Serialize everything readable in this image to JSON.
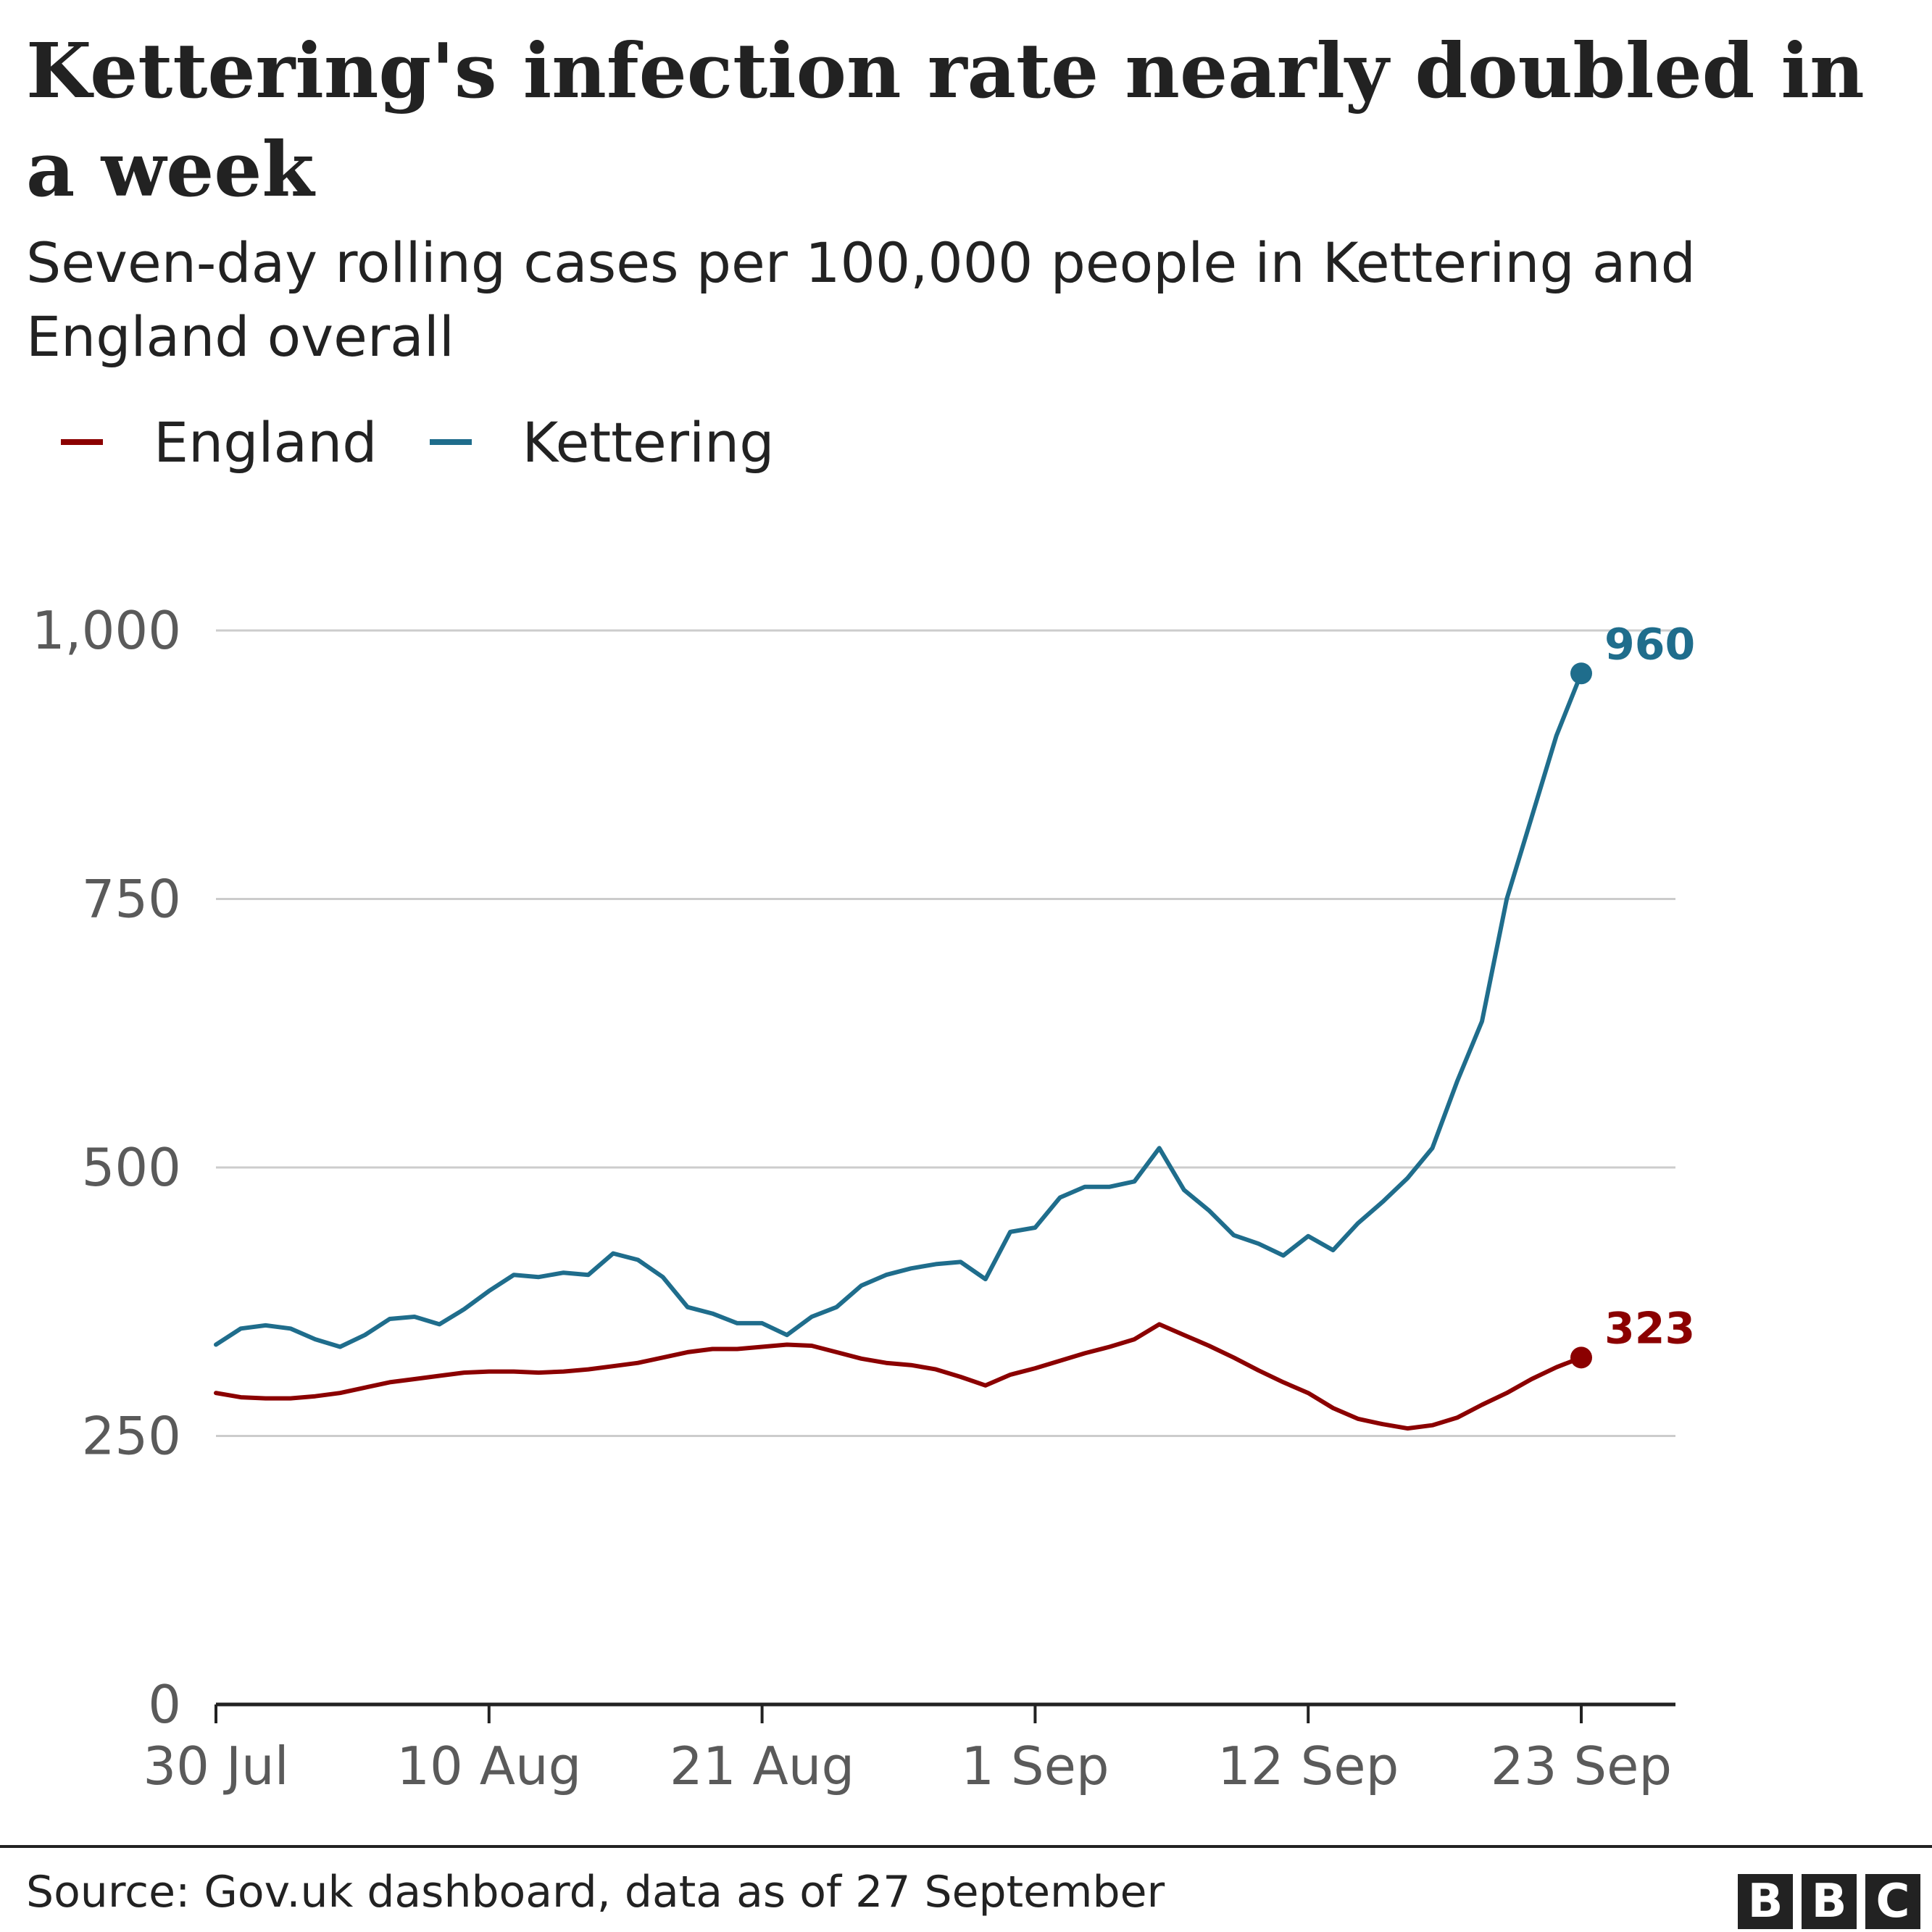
{
  "chart_data": {
    "type": "line",
    "title": "Kettering's infection rate nearly doubled in a week",
    "subtitle": "Seven-day rolling cases per 100,000 people in Kettering and England overall",
    "xlabel": "",
    "ylabel": "",
    "ylim": [
      0,
      1000
    ],
    "y_ticks": [
      {
        "value": 0,
        "label": "0"
      },
      {
        "value": 250,
        "label": "250"
      },
      {
        "value": 500,
        "label": "500"
      },
      {
        "value": 750,
        "label": "750"
      },
      {
        "value": 1000,
        "label": "1,000"
      }
    ],
    "x_start": "30 Jul",
    "x_ticks": [
      {
        "label": "30 Jul",
        "day": 0
      },
      {
        "label": "10 Aug",
        "day": 11
      },
      {
        "label": "21 Aug",
        "day": 22
      },
      {
        "label": "1 Sep",
        "day": 33
      },
      {
        "label": "12 Sep",
        "day": 44
      },
      {
        "label": "23 Sep",
        "day": 55
      }
    ],
    "grid": true,
    "legend_position": "top-left",
    "series": [
      {
        "name": "England",
        "color": "#8b0000",
        "end_label": "323",
        "values": [
          290,
          286,
          285,
          285,
          287,
          290,
          295,
          300,
          303,
          306,
          309,
          310,
          310,
          309,
          310,
          312,
          315,
          318,
          323,
          328,
          331,
          331,
          333,
          335,
          334,
          328,
          322,
          318,
          316,
          312,
          305,
          297,
          307,
          313,
          320,
          327,
          333,
          340,
          354,
          344,
          334,
          323,
          311,
          300,
          290,
          276,
          266,
          261,
          257,
          260,
          267,
          279,
          290,
          303,
          314,
          323
        ]
      },
      {
        "name": "Kettering",
        "color": "#1f6d8c",
        "end_label": "960",
        "values": [
          335,
          350,
          353,
          350,
          340,
          333,
          344,
          359,
          361,
          354,
          368,
          385,
          400,
          398,
          402,
          400,
          420,
          414,
          398,
          370,
          364,
          355,
          355,
          344,
          361,
          370,
          390,
          400,
          406,
          410,
          412,
          396,
          440,
          444,
          472,
          482,
          482,
          487,
          518,
          479,
          460,
          437,
          429,
          418,
          436,
          423,
          448,
          468,
          490,
          518,
          580,
          636,
          750,
          826,
          902,
          960
        ]
      }
    ]
  },
  "source": "Source: Gov.uk dashboard, data as of 27 September",
  "logo": [
    "B",
    "B",
    "C"
  ]
}
